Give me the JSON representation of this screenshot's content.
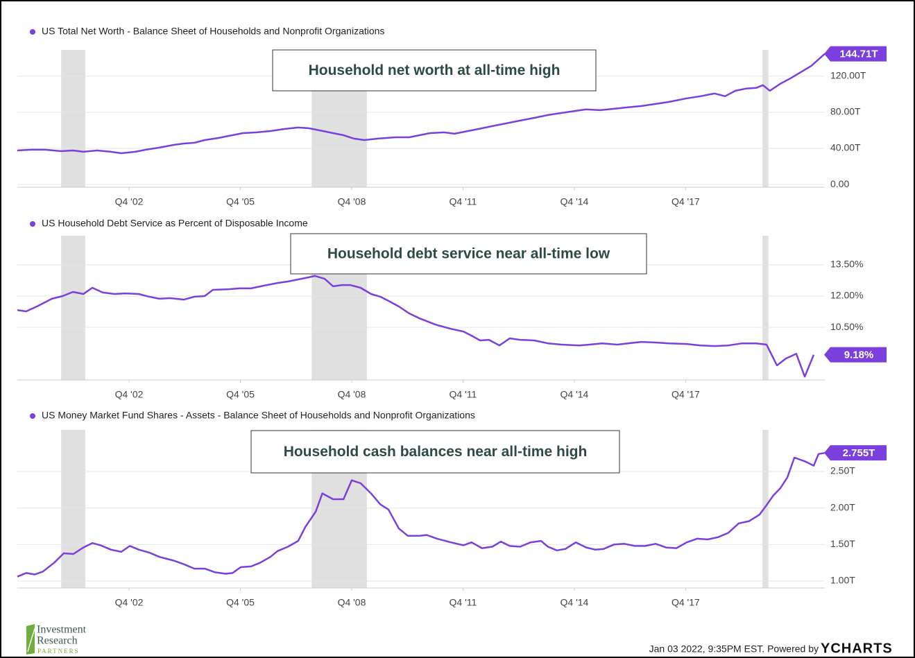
{
  "chart_data": [
    {
      "type": "line",
      "series": [
        {
          "name": "US Total Net Worth - Balance Sheet of Households and Nonprofit Organizations",
          "color": "#7a3fdc",
          "values": [
            37.7,
            38.5,
            38.5,
            36.9,
            37.7,
            36.2,
            37.7,
            36.2,
            34.6,
            36.2,
            38.5,
            40.8,
            43.8,
            45.4,
            46.2,
            49.2,
            51.5,
            53.8,
            56.9,
            57.7,
            59.2,
            61.5,
            63.1,
            62.3,
            60.0,
            56.9,
            54.6,
            50.8,
            49.2,
            50.8,
            52.3,
            52.3,
            54.6,
            56.9,
            57.7,
            56.2,
            58.5,
            61.5,
            64.6,
            67.7,
            70.8,
            73.8,
            76.9,
            79.2,
            81.5,
            83.1,
            82.3,
            83.8,
            85.4,
            86.9,
            89.2,
            91.5,
            95.4,
            97.7,
            100.8,
            97.7,
            103.8,
            106.2,
            106.9,
            110.0,
            103.8,
            111.5,
            117.7,
            124.6,
            131.5,
            144.71
          ],
          "value_labels": [
            null,
            null,
            null,
            null,
            null,
            null,
            null,
            null,
            null,
            null,
            null,
            null,
            null,
            null,
            null,
            null,
            null,
            null,
            null,
            null,
            null,
            null,
            null,
            null,
            null,
            null,
            null,
            null,
            null,
            null,
            null,
            null,
            null,
            null,
            null,
            null,
            null,
            null,
            null,
            null,
            null,
            null,
            null,
            null,
            null,
            null,
            null,
            null,
            null,
            null,
            null,
            null,
            null,
            null,
            null,
            null,
            null,
            null,
            null,
            null,
            null,
            null,
            null,
            null,
            null,
            "144.71T"
          ]
        }
      ],
      "x": [
        1999.74,
        2000.11,
        2000.49,
        2000.92,
        2001.24,
        2001.52,
        2001.89,
        2002.26,
        2002.54,
        2002.92,
        2003.2,
        2003.57,
        2003.95,
        2004.23,
        2004.51,
        2004.79,
        2005.16,
        2005.44,
        2005.82,
        2006.19,
        2006.56,
        2006.94,
        2007.31,
        2007.59,
        2007.87,
        2008.25,
        2008.53,
        2008.81,
        2009.09,
        2009.46,
        2009.93,
        2010.3,
        2010.58,
        2010.86,
        2011.24,
        2011.52,
        2011.8,
        2012.17,
        2012.54,
        2012.92,
        2013.29,
        2013.67,
        2014.04,
        2014.41,
        2014.79,
        2015.07,
        2015.44,
        2015.82,
        2016.19,
        2016.56,
        2016.94,
        2017.31,
        2017.78,
        2018.15,
        2018.53,
        2018.81,
        2019.09,
        2019.37,
        2019.65,
        2019.83,
        2020.02,
        2020.3,
        2020.58,
        2020.86,
        2021.14,
        2021.5
      ],
      "xlim": [
        1999.74,
        2021.5
      ],
      "xticks": [
        {
          "value": 2002.75,
          "label": "Q4 '02"
        },
        {
          "value": 2005.75,
          "label": "Q4 '05"
        },
        {
          "value": 2008.75,
          "label": "Q4 '08"
        },
        {
          "value": 2011.75,
          "label": "Q4 '11"
        },
        {
          "value": 2014.75,
          "label": "Q4 '14"
        },
        {
          "value": 2017.75,
          "label": "Q4 '17"
        }
      ],
      "ylim": [
        -3,
        149
      ],
      "yticks": [
        {
          "value": 0,
          "label": "0.00"
        },
        {
          "value": 40,
          "label": "40.00T"
        },
        {
          "value": 80,
          "label": "80.00T"
        },
        {
          "value": 120,
          "label": "120.00T"
        }
      ],
      "grid": true,
      "shaded_x_ranges": [
        [
          2000.92,
          2001.57
        ],
        [
          2007.67,
          2009.16
        ],
        [
          2019.82,
          2019.98
        ]
      ],
      "annotation": "Household net worth at all-time high"
    },
    {
      "type": "line",
      "series": [
        {
          "name": "US Household Debt Service as Percent of Disposable Income",
          "color": "#7a3fdc",
          "values": [
            11.33,
            11.27,
            11.53,
            11.87,
            12.0,
            12.2,
            12.1,
            12.4,
            12.17,
            12.1,
            12.13,
            12.1,
            11.97,
            11.87,
            11.9,
            11.83,
            11.97,
            12.0,
            12.3,
            12.33,
            12.37,
            12.37,
            12.5,
            12.63,
            12.7,
            12.8,
            12.9,
            12.97,
            12.83,
            12.47,
            12.53,
            12.53,
            12.4,
            12.1,
            11.97,
            11.77,
            11.5,
            11.17,
            10.93,
            10.63,
            10.43,
            10.3,
            10.1,
            9.87,
            9.9,
            9.63,
            9.97,
            9.9,
            9.87,
            9.73,
            9.67,
            9.63,
            9.67,
            9.73,
            9.67,
            9.73,
            9.8,
            9.77,
            9.73,
            9.7,
            9.63,
            9.6,
            9.63,
            9.73,
            9.73,
            9.67,
            8.67,
            9.0,
            9.23,
            8.13,
            9.18
          ],
          "value_labels": [
            null,
            null,
            null,
            null,
            null,
            null,
            null,
            null,
            null,
            null,
            null,
            null,
            null,
            null,
            null,
            null,
            null,
            null,
            null,
            null,
            null,
            null,
            null,
            null,
            null,
            null,
            null,
            null,
            null,
            null,
            null,
            null,
            null,
            null,
            null,
            null,
            null,
            null,
            null,
            null,
            null,
            null,
            null,
            null,
            null,
            null,
            null,
            null,
            null,
            null,
            null,
            null,
            null,
            null,
            null,
            null,
            null,
            null,
            null,
            null,
            null,
            null,
            null,
            null,
            null,
            null,
            null,
            null,
            null,
            null,
            "9.18%"
          ]
        }
      ],
      "x": [
        1999.74,
        1999.98,
        2000.3,
        2000.67,
        2000.96,
        2001.24,
        2001.52,
        2001.76,
        2002.04,
        2002.36,
        2002.64,
        2003.01,
        2003.29,
        2003.57,
        2003.85,
        2004.23,
        2004.51,
        2004.79,
        2005.01,
        2005.44,
        2005.72,
        2006.04,
        2006.38,
        2006.75,
        2007.03,
        2007.31,
        2007.59,
        2007.76,
        2008.02,
        2008.25,
        2008.49,
        2008.71,
        2008.99,
        2009.27,
        2009.52,
        2009.74,
        2010.02,
        2010.3,
        2010.58,
        2011.01,
        2011.42,
        2011.76,
        2011.98,
        2012.21,
        2012.45,
        2012.73,
        2013.01,
        2013.29,
        2013.67,
        2014.04,
        2014.41,
        2014.88,
        2015.16,
        2015.5,
        2015.91,
        2016.19,
        2016.56,
        2016.94,
        2017.31,
        2017.78,
        2018.15,
        2018.53,
        2018.9,
        2019.27,
        2019.65,
        2019.93,
        2020.21,
        2020.45,
        2020.73,
        2020.96,
        2021.2
      ],
      "xlim": [
        1999.74,
        2021.5
      ],
      "xticks": [
        {
          "value": 2002.75,
          "label": "Q4 '02"
        },
        {
          "value": 2005.75,
          "label": "Q4 '05"
        },
        {
          "value": 2008.75,
          "label": "Q4 '08"
        },
        {
          "value": 2011.75,
          "label": "Q4 '11"
        },
        {
          "value": 2014.75,
          "label": "Q4 '14"
        },
        {
          "value": 2017.75,
          "label": "Q4 '17"
        }
      ],
      "ylim": [
        7.97,
        14.9
      ],
      "yticks": [
        {
          "value": 10.5,
          "label": "10.50%"
        },
        {
          "value": 12,
          "label": "12.00%"
        },
        {
          "value": 13.5,
          "label": "13.50%"
        }
      ],
      "grid": true,
      "shaded_x_ranges": [
        [
          2000.92,
          2001.57
        ],
        [
          2007.67,
          2009.16
        ],
        [
          2019.82,
          2019.98
        ]
      ],
      "annotation": "Household debt service near all-time low"
    },
    {
      "type": "line",
      "series": [
        {
          "name": "US Money Market Fund Shares - Assets - Balance Sheet of Households and Nonprofit Organizations",
          "color": "#7a3fdc",
          "values": [
            1.06,
            1.11,
            1.09,
            1.13,
            1.25,
            1.38,
            1.37,
            1.46,
            1.52,
            1.49,
            1.43,
            1.4,
            1.48,
            1.43,
            1.39,
            1.33,
            1.28,
            1.23,
            1.17,
            1.17,
            1.12,
            1.1,
            1.11,
            1.19,
            1.2,
            1.25,
            1.33,
            1.41,
            1.47,
            1.55,
            1.74,
            1.95,
            2.2,
            2.12,
            2.12,
            2.38,
            2.34,
            2.2,
            2.05,
            1.98,
            1.72,
            1.62,
            1.62,
            1.63,
            1.58,
            1.53,
            1.49,
            1.53,
            1.45,
            1.47,
            1.54,
            1.48,
            1.47,
            1.53,
            1.55,
            1.47,
            1.42,
            1.44,
            1.53,
            1.46,
            1.43,
            1.44,
            1.5,
            1.51,
            1.48,
            1.48,
            1.51,
            1.46,
            1.45,
            1.53,
            1.58,
            1.57,
            1.6,
            1.66,
            1.79,
            1.82,
            1.91,
            2.04,
            2.17,
            2.27,
            2.42,
            2.69,
            2.64,
            2.58,
            2.74,
            2.755
          ],
          "value_labels": [
            null,
            null,
            null,
            null,
            null,
            null,
            null,
            null,
            null,
            null,
            null,
            null,
            null,
            null,
            null,
            null,
            null,
            null,
            null,
            null,
            null,
            null,
            null,
            null,
            null,
            null,
            null,
            null,
            null,
            null,
            null,
            null,
            null,
            null,
            null,
            null,
            null,
            null,
            null,
            null,
            null,
            null,
            null,
            null,
            null,
            null,
            null,
            null,
            null,
            null,
            null,
            null,
            null,
            null,
            null,
            null,
            null,
            null,
            null,
            null,
            null,
            null,
            null,
            null,
            null,
            null,
            null,
            null,
            null,
            null,
            null,
            null,
            null,
            null,
            null,
            null,
            null,
            null,
            null,
            null,
            null,
            null,
            null,
            null,
            null,
            "2.755T"
          ]
        }
      ],
      "x": [
        1999.74,
        1999.98,
        2000.21,
        2000.43,
        2000.73,
        2000.99,
        2001.25,
        2001.52,
        2001.76,
        2001.98,
        2002.26,
        2002.54,
        2002.77,
        2003.01,
        2003.29,
        2003.57,
        2003.95,
        2004.23,
        2004.51,
        2004.79,
        2005.07,
        2005.35,
        2005.54,
        2005.76,
        2006.04,
        2006.28,
        2006.56,
        2006.75,
        2007.03,
        2007.31,
        2007.5,
        2007.78,
        2007.96,
        2008.25,
        2008.53,
        2008.75,
        2008.99,
        2009.27,
        2009.52,
        2009.74,
        2010.02,
        2010.26,
        2010.58,
        2010.77,
        2011.05,
        2011.42,
        2011.76,
        2011.98,
        2012.26,
        2012.54,
        2012.77,
        2013.01,
        2013.29,
        2013.57,
        2013.85,
        2014.04,
        2014.28,
        2014.51,
        2014.79,
        2015.07,
        2015.31,
        2015.54,
        2015.82,
        2016.1,
        2016.38,
        2016.66,
        2016.94,
        2017.22,
        2017.5,
        2017.78,
        2018.06,
        2018.34,
        2018.62,
        2018.9,
        2019.18,
        2019.46,
        2019.74,
        2019.93,
        2020.11,
        2020.3,
        2020.49,
        2020.68,
        2020.96,
        2021.2,
        2021.33,
        2021.5
      ],
      "xlim": [
        1999.74,
        2021.5
      ],
      "xticks": [
        {
          "value": 2002.75,
          "label": "Q4 '02"
        },
        {
          "value": 2005.75,
          "label": "Q4 '05"
        },
        {
          "value": 2008.75,
          "label": "Q4 '08"
        },
        {
          "value": 2011.75,
          "label": "Q4 '11"
        },
        {
          "value": 2014.75,
          "label": "Q4 '14"
        },
        {
          "value": 2017.75,
          "label": "Q4 '17"
        }
      ],
      "ylim": [
        0.905,
        3.07
      ],
      "yticks": [
        {
          "value": 1,
          "label": "1.00T"
        },
        {
          "value": 1.5,
          "label": "1.50T"
        },
        {
          "value": 2,
          "label": "2.00T"
        },
        {
          "value": 2.5,
          "label": "2.50T"
        }
      ],
      "grid": true,
      "shaded_x_ranges": [
        [
          2000.92,
          2001.57
        ],
        [
          2007.67,
          2009.16
        ],
        [
          2019.82,
          2019.98
        ]
      ],
      "annotation": "Household cash balances near all-time high"
    }
  ],
  "footer": {
    "timestamp": "Jan 03 2022, 9:35PM EST. Powered by",
    "brand": "YCHARTS"
  },
  "logo": {
    "line1": "Investment",
    "line2": "Research",
    "line3": "PARTNERS"
  }
}
